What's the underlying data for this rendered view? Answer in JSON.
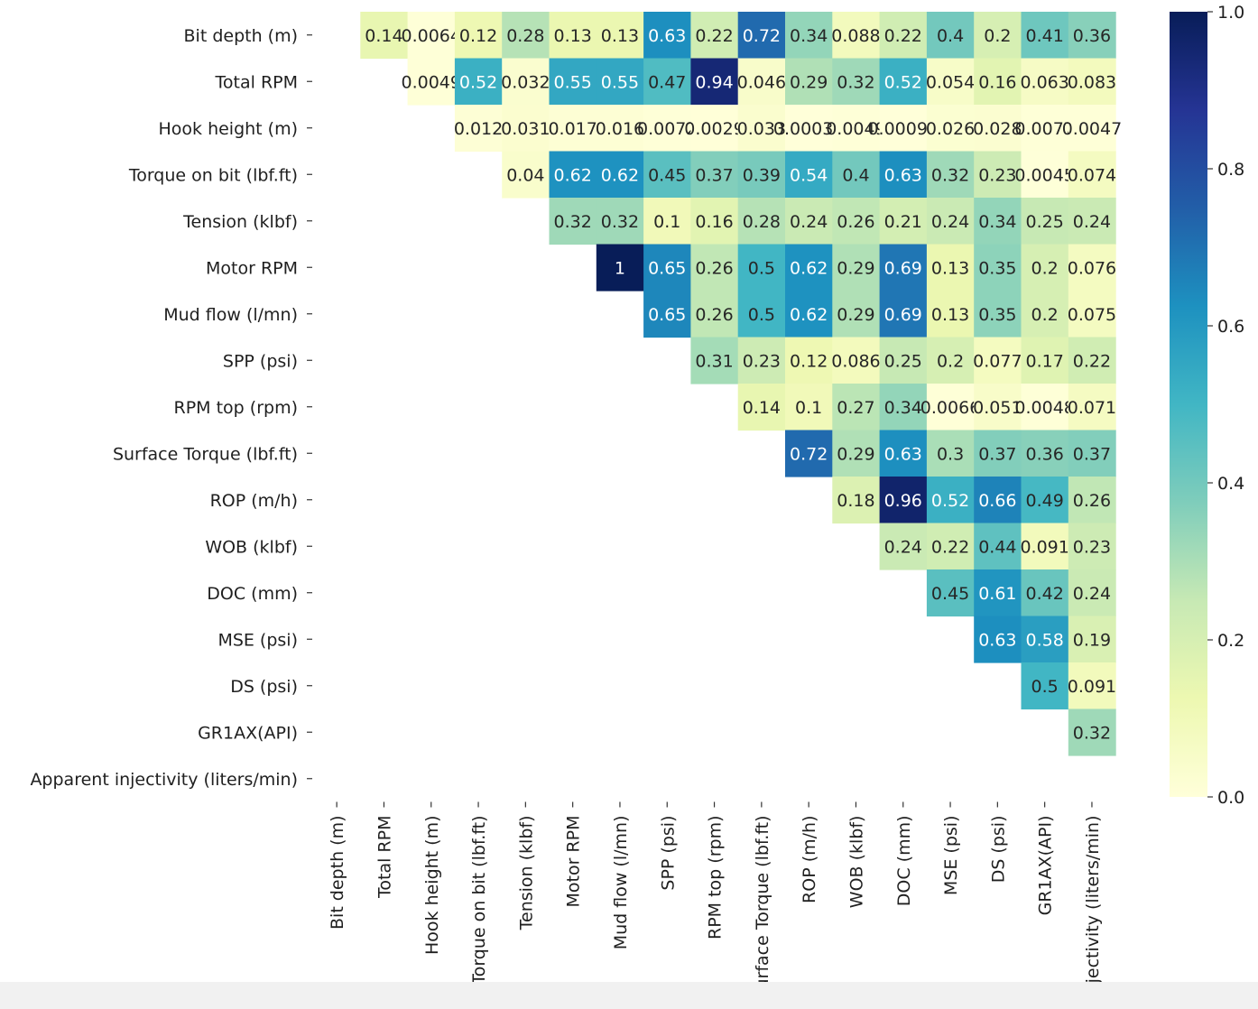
{
  "chart_data": {
    "type": "heatmap",
    "title": "",
    "variables": [
      "Bit depth (m)",
      "Total RPM",
      "Hook height (m)",
      "Torque on bit (lbf.ft)",
      "Tension (klbf)",
      "Motor RPM",
      "Mud flow (l/mn)",
      "SPP (psi)",
      "RPM top (rpm)",
      "Surface Torque (lbf.ft)",
      "ROP (m/h)",
      "WOB (klbf)",
      "DOC (mm)",
      "MSE (psi)",
      "DS (psi)",
      "GR1AX(API)",
      "Apparent injectivity (liters/min)"
    ],
    "x_tick_labels": [
      "Bit depth (m)",
      "Total RPM",
      "Hook height (m)",
      "Torque on bit (lbf.ft)",
      "Tension (klbf)",
      "Motor RPM",
      "Mud flow (l/mn)",
      "SPP (psi)",
      "RPM top (rpm)",
      "Surface Torque (lbf.ft)",
      "ROP (m/h)",
      "WOB (klbf)",
      "DOC (mm)",
      "MSE (psi)",
      "DS (psi)",
      "GR1AX(API)",
      "injectivity (liters/min)"
    ],
    "upper_triangle_values": [
      [
        "0.14",
        "0.0064",
        "0.12",
        "0.28",
        "0.13",
        "0.13",
        "0.63",
        "0.22",
        "0.72",
        "0.34",
        "0.088",
        "0.22",
        "0.4",
        "0.2",
        "0.41",
        "0.36"
      ],
      [
        "0.0049",
        "0.52",
        "0.032",
        "0.55",
        "0.55",
        "0.47",
        "0.94",
        "0.046",
        "0.29",
        "0.32",
        "0.52",
        "0.054",
        "0.16",
        "0.063",
        "0.083"
      ],
      [
        "0.012",
        "0.031",
        "0.017",
        "0.016",
        "0.0072",
        "0.0029",
        "0.033",
        "0.00037",
        "0.0049",
        "0.00096",
        "0.026",
        "0.028",
        "0.0077",
        "0.0047"
      ],
      [
        "0.04",
        "0.62",
        "0.62",
        "0.45",
        "0.37",
        "0.39",
        "0.54",
        "0.4",
        "0.63",
        "0.32",
        "0.23",
        "0.0045",
        "0.074"
      ],
      [
        "0.32",
        "0.32",
        "0.1",
        "0.16",
        "0.28",
        "0.24",
        "0.26",
        "0.21",
        "0.24",
        "0.34",
        "0.25",
        "0.24"
      ],
      [
        "1",
        "0.65",
        "0.26",
        "0.5",
        "0.62",
        "0.29",
        "0.69",
        "0.13",
        "0.35",
        "0.2",
        "0.076"
      ],
      [
        "0.65",
        "0.26",
        "0.5",
        "0.62",
        "0.29",
        "0.69",
        "0.13",
        "0.35",
        "0.2",
        "0.075"
      ],
      [
        "0.31",
        "0.23",
        "0.12",
        "0.086",
        "0.25",
        "0.2",
        "0.077",
        "0.17",
        "0.22"
      ],
      [
        "0.14",
        "0.1",
        "0.27",
        "0.34",
        "0.0066",
        "0.051",
        "0.0048",
        "0.071"
      ],
      [
        "0.72",
        "0.29",
        "0.63",
        "0.3",
        "0.37",
        "0.36",
        "0.37"
      ],
      [
        "0.18",
        "0.96",
        "0.52",
        "0.66",
        "0.49",
        "0.26"
      ],
      [
        "0.24",
        "0.22",
        "0.44",
        "0.091",
        "0.23"
      ],
      [
        "0.45",
        "0.61",
        "0.42",
        "0.24"
      ],
      [
        "0.63",
        "0.58",
        "0.19"
      ],
      [
        "0.5",
        "0.091"
      ],
      [
        "0.32"
      ],
      []
    ],
    "colorbar": {
      "colormap": "YlGnBu",
      "range": [
        0.0,
        1.0
      ],
      "tick_labels": [
        "0.0",
        "0.2",
        "0.4",
        "0.6",
        "0.8",
        "1.0"
      ]
    },
    "grid": false,
    "legend": "colorbar-right"
  }
}
